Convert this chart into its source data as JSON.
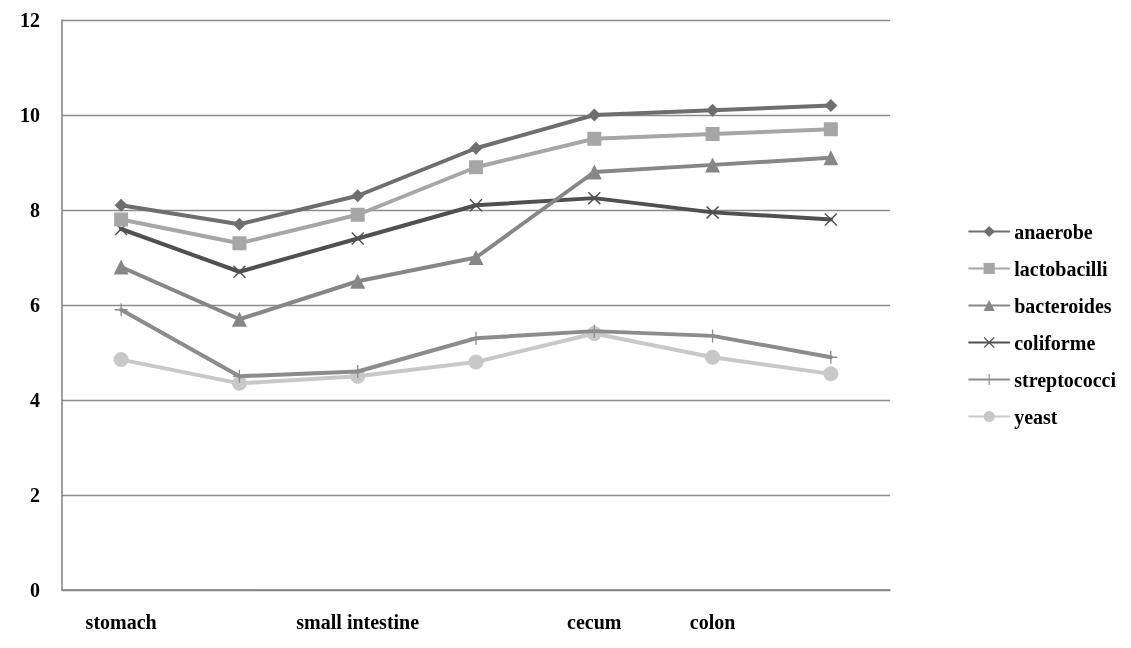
{
  "chart_data": {
    "type": "line",
    "categories": [
      "stomach",
      null,
      "small intestine",
      null,
      "cecum",
      "colon",
      null
    ],
    "series": [
      {
        "name": "anaerobe",
        "color": "#6e6e6e",
        "marker": "diamond",
        "values": [
          8.1,
          7.7,
          8.3,
          9.3,
          10.0,
          10.1,
          10.2
        ]
      },
      {
        "name": "lactobacilli",
        "color": "#a6a6a6",
        "marker": "square",
        "values": [
          7.8,
          7.3,
          7.9,
          8.9,
          9.5,
          9.6,
          9.7
        ]
      },
      {
        "name": "bacteroides",
        "color": "#878787",
        "marker": "triangle",
        "values": [
          6.8,
          5.7,
          6.5,
          7.0,
          8.8,
          8.95,
          9.1
        ]
      },
      {
        "name": "coliforme",
        "color": "#505050",
        "marker": "x",
        "values": [
          7.6,
          6.7,
          7.4,
          8.1,
          8.25,
          7.95,
          7.8
        ]
      },
      {
        "name": "streptococci",
        "color": "#8c8c8c",
        "marker": "cross",
        "values": [
          5.9,
          4.5,
          4.6,
          5.3,
          5.45,
          5.35,
          4.9
        ]
      },
      {
        "name": "yeast",
        "color": "#c8c8c8",
        "marker": "circle",
        "values": [
          4.85,
          4.35,
          4.5,
          4.8,
          5.4,
          4.9,
          4.55
        ]
      }
    ],
    "ylim": [
      0,
      12
    ],
    "yticks": [
      0,
      2,
      4,
      6,
      8,
      10,
      12
    ],
    "grid": "y",
    "legend": "right",
    "line_style": "solid"
  }
}
